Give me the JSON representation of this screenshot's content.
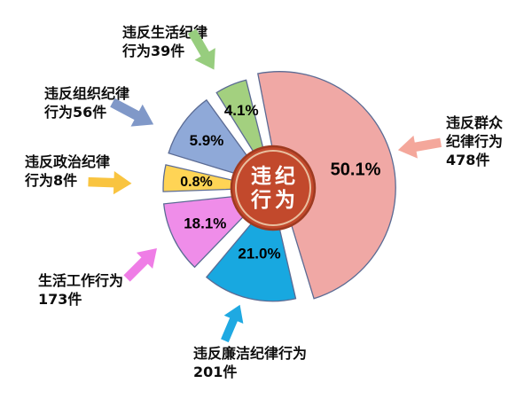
{
  "chart_data": {
    "type": "pie",
    "title": "违纪行为",
    "legend_position": "none",
    "grid": false,
    "center_badge": {
      "lines": [
        "违纪",
        "行为"
      ],
      "fill": "#c2492c",
      "edge_color": "#9e3a20",
      "ring_color": "#f3ddbd",
      "text_color": "#ffffff"
    },
    "slices": [
      {
        "name": "违反群众纪律行为",
        "count": 478,
        "unit": "件",
        "pct": 50.1,
        "color": "#f0a8a5"
      },
      {
        "name": "违反廉洁纪律行为",
        "count": 201,
        "unit": "件",
        "pct": 21.0,
        "color": "#18a8e0"
      },
      {
        "name": "生活工作行为",
        "count": 173,
        "unit": "件",
        "pct": 18.1,
        "color": "#ef8de9"
      },
      {
        "name": "违反政治纪律行为",
        "count": 8,
        "unit": "件",
        "pct": 0.8,
        "color": "#ffd455"
      },
      {
        "name": "违反组织纪律行为",
        "count": 56,
        "unit": "件",
        "pct": 5.9,
        "color": "#8fa9d8"
      },
      {
        "name": "违反生活纪律行为",
        "count": 39,
        "unit": "件",
        "pct": 4.1,
        "color": "#a3d07f"
      }
    ],
    "percent_labels": [
      "50.1%",
      "21.0%",
      "18.1%",
      "0.8%",
      "5.9%",
      "4.1%"
    ],
    "slice_border_color": "#5b6b94"
  },
  "callouts": [
    {
      "id": "life-discipline",
      "lines": [
        "违反生活纪律",
        "行为39件"
      ],
      "arrow_color": "#97cd7e"
    },
    {
      "id": "organization-discipline",
      "lines": [
        "违反组织纪律",
        "行为56件"
      ],
      "arrow_color": "#8098c8"
    },
    {
      "id": "political-discipline",
      "lines": [
        "违反政治纪律",
        "行为8件"
      ],
      "arrow_color": "#f9c440"
    },
    {
      "id": "life-work",
      "lines": [
        "生活工作行为",
        "173件"
      ],
      "arrow_color": "#ef7de6"
    },
    {
      "id": "integrity-discipline",
      "lines": [
        "违反廉洁纪律行为",
        "201件"
      ],
      "arrow_color": "#1fa9e2"
    },
    {
      "id": "mass-discipline",
      "lines": [
        "违反群众",
        "纪律行为",
        "478件"
      ],
      "arrow_color": "#f4a79b"
    }
  ]
}
